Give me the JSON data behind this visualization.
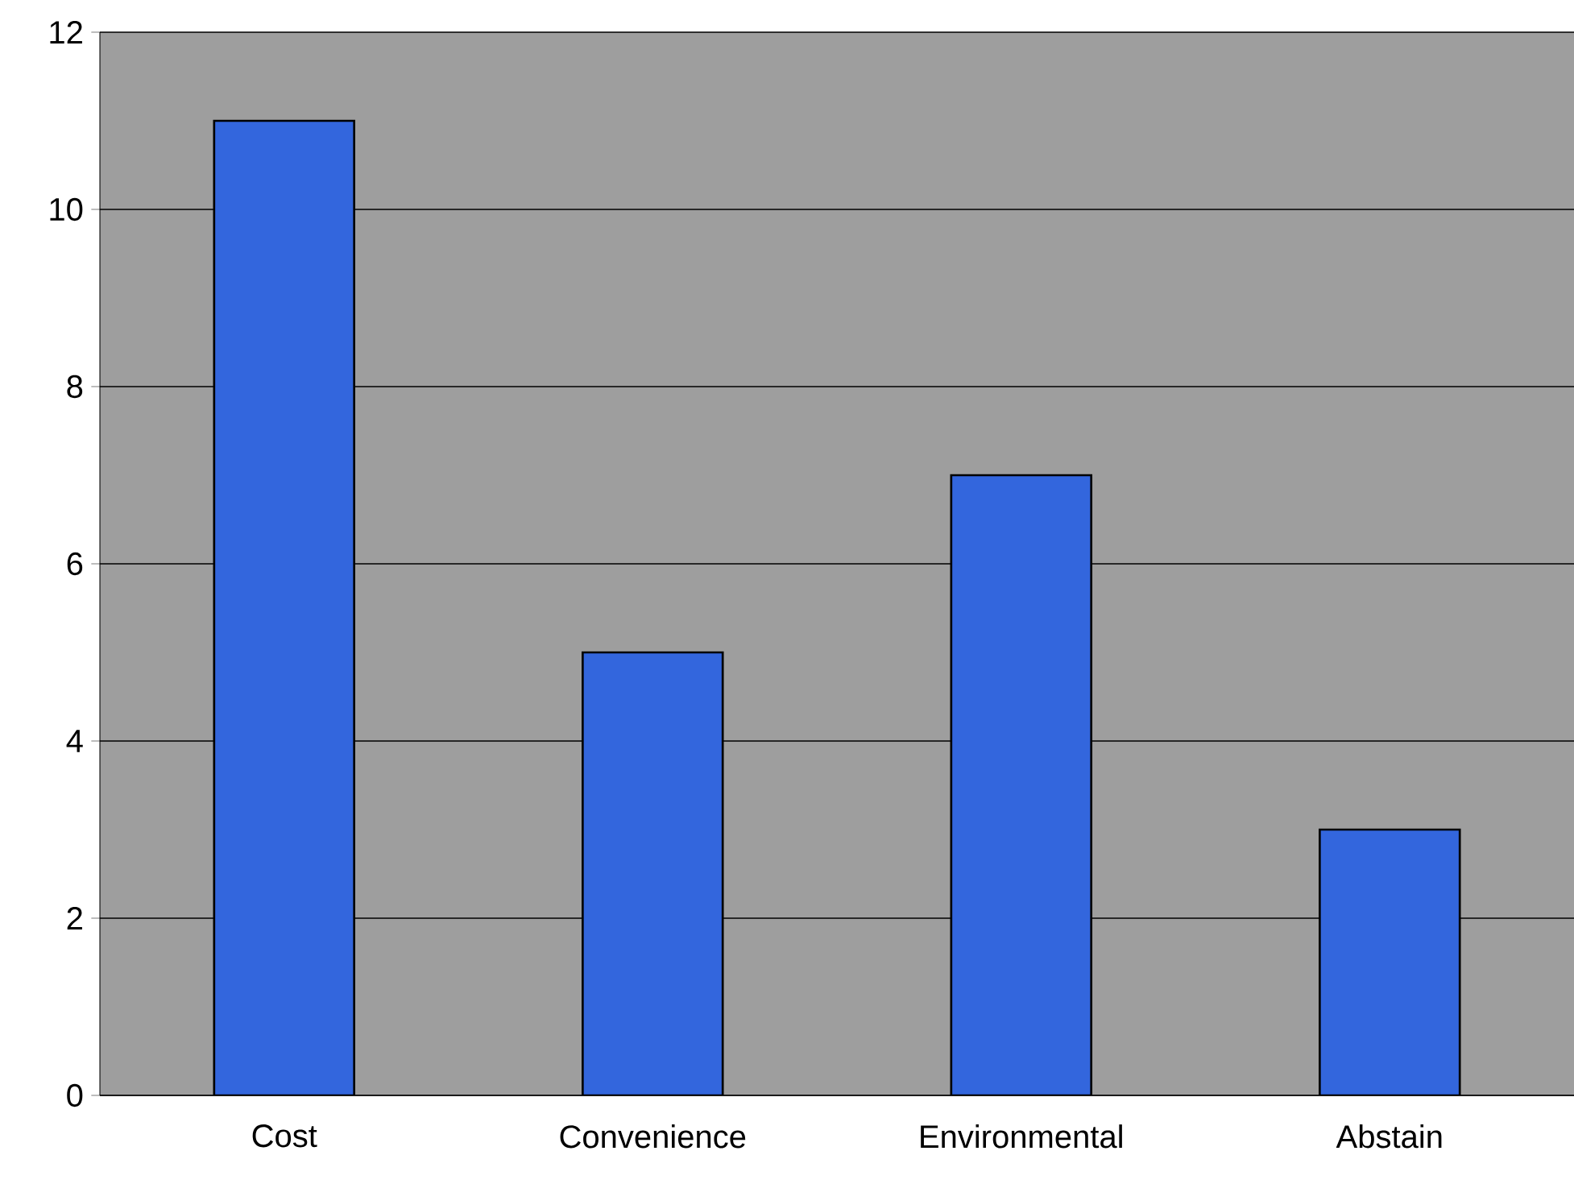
{
  "chart_data": {
    "type": "bar",
    "categories": [
      "Cost",
      "Convenience",
      "Environmental",
      "Abstain"
    ],
    "values": [
      11,
      5,
      7,
      3
    ],
    "color": "#3366dd",
    "ylim": [
      0,
      12
    ],
    "yticks": [
      0,
      2,
      4,
      6,
      8,
      10,
      12
    ],
    "grid": "y"
  }
}
